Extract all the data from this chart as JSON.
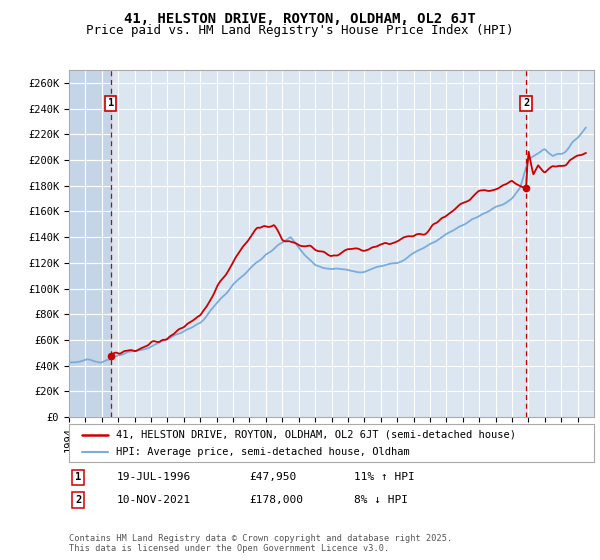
{
  "title": "41, HELSTON DRIVE, ROYTON, OLDHAM, OL2 6JT",
  "subtitle": "Price paid vs. HM Land Registry's House Price Index (HPI)",
  "ylim": [
    0,
    270000
  ],
  "yticks": [
    0,
    20000,
    40000,
    60000,
    80000,
    100000,
    120000,
    140000,
    160000,
    180000,
    200000,
    220000,
    240000,
    260000
  ],
  "ytick_labels": [
    "£0",
    "£20K",
    "£40K",
    "£60K",
    "£80K",
    "£100K",
    "£120K",
    "£140K",
    "£160K",
    "£180K",
    "£200K",
    "£220K",
    "£240K",
    "£260K"
  ],
  "plot_bg_color": "#dce6f1",
  "hatch_color": "#c5d5e8",
  "grid_color": "#ffffff",
  "red_line_color": "#cc0000",
  "blue_line_color": "#7aaddc",
  "marker1_date_num": 1996.54,
  "marker1_price": 47950,
  "marker1_label": "1",
  "marker2_date_num": 2021.86,
  "marker2_price": 178000,
  "marker2_label": "2",
  "legend_line1": "41, HELSTON DRIVE, ROYTON, OLDHAM, OL2 6JT (semi-detached house)",
  "legend_line2": "HPI: Average price, semi-detached house, Oldham",
  "copyright": "Contains HM Land Registry data © Crown copyright and database right 2025.\nThis data is licensed under the Open Government Licence v3.0.",
  "title_fontsize": 10,
  "subtitle_fontsize": 9,
  "tick_fontsize": 7.5,
  "xstart": 1994,
  "xend": 2026
}
